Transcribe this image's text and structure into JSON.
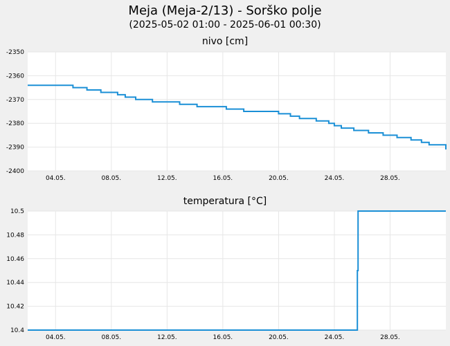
{
  "header": {
    "title": "Meja (Meja-2/13) - Sorško polje",
    "subtitle": "(2025-05-02 01:00 - 2025-06-01 00:30)"
  },
  "colors": {
    "background": "#f0f0f0",
    "plot_background": "#ffffff",
    "series": "#1a8fd6",
    "grid": "#e6e6e6"
  },
  "chart_data": [
    {
      "type": "line",
      "title": "nivo [cm]",
      "xlabel": "",
      "ylabel": "",
      "x_range": [
        2.0,
        32.0
      ],
      "ylim": [
        -2400,
        -2350
      ],
      "grid": true,
      "x_ticks": [
        {
          "x": 4,
          "label": "04.05."
        },
        {
          "x": 8,
          "label": "08.05."
        },
        {
          "x": 12,
          "label": "12.05."
        },
        {
          "x": 16,
          "label": "16.05."
        },
        {
          "x": 20,
          "label": "20.05."
        },
        {
          "x": 24,
          "label": "24.05."
        },
        {
          "x": 28,
          "label": "28.05."
        }
      ],
      "y_ticks": [
        {
          "y": -2350,
          "label": "-2350"
        },
        {
          "y": -2360,
          "label": "-2360"
        },
        {
          "y": -2370,
          "label": "-2370"
        },
        {
          "y": -2380,
          "label": "-2380"
        },
        {
          "y": -2390,
          "label": "-2390"
        },
        {
          "y": -2400,
          "label": "-2400"
        }
      ],
      "series": [
        {
          "step": true,
          "x": [
            2.0,
            5.25,
            6.25,
            7.25,
            8.45,
            9.0,
            9.75,
            10.95,
            12.9,
            14.15,
            16.25,
            17.5,
            20.0,
            20.85,
            21.5,
            22.7,
            23.6,
            24.0,
            24.5,
            25.4,
            26.45,
            27.5,
            28.5,
            29.5,
            30.25,
            30.8,
            32.0
          ],
          "y": [
            -2364,
            -2365,
            -2366,
            -2367,
            -2368,
            -2369,
            -2370,
            -2371,
            -2372,
            -2373,
            -2374,
            -2375,
            -2376,
            -2377,
            -2378,
            -2379,
            -2380,
            -2381,
            -2382,
            -2383,
            -2384,
            -2385,
            -2386,
            -2387,
            -2388,
            -2389,
            -2391
          ]
        }
      ]
    },
    {
      "type": "line",
      "title": "temperatura [°C]",
      "xlabel": "",
      "ylabel": "",
      "x_range": [
        2.0,
        32.0
      ],
      "ylim": [
        10.4,
        10.5
      ],
      "grid": true,
      "x_ticks": [
        {
          "x": 4,
          "label": "04.05."
        },
        {
          "x": 8,
          "label": "08.05."
        },
        {
          "x": 12,
          "label": "12.05."
        },
        {
          "x": 16,
          "label": "16.05."
        },
        {
          "x": 20,
          "label": "20.05."
        },
        {
          "x": 24,
          "label": "24.05."
        },
        {
          "x": 28,
          "label": "28.05."
        }
      ],
      "y_ticks": [
        {
          "y": 10.4,
          "label": "10.4"
        },
        {
          "y": 10.42,
          "label": "10.42"
        },
        {
          "y": 10.44,
          "label": "10.44"
        },
        {
          "y": 10.46,
          "label": "10.46"
        },
        {
          "y": 10.48,
          "label": "10.48"
        },
        {
          "y": 10.5,
          "label": "10.5"
        }
      ],
      "series": [
        {
          "step": false,
          "x": [
            2.0,
            25.65,
            25.65,
            25.66,
            25.7,
            25.7,
            32.0
          ],
          "y": [
            10.4,
            10.4,
            10.45,
            10.45,
            10.45,
            10.5,
            10.5
          ]
        }
      ]
    }
  ]
}
